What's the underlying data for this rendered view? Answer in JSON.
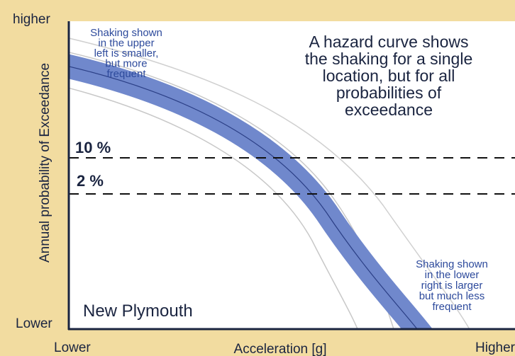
{
  "axes": {
    "y_top": "higher",
    "y_bottom": "Lower",
    "y_title": "Annual probability of Exceedance",
    "x_left": "Lower",
    "x_right": "Higher",
    "x_title": "Acceleration [g]"
  },
  "notes": {
    "upper_left": [
      "Shaking shown",
      "in the upper",
      "left is smaller,",
      "but more",
      "frequent"
    ],
    "main": [
      "A hazard curve shows",
      "the shaking for a single",
      "location, but for all",
      "probabilities of",
      "exceedance"
    ],
    "lower_right": [
      "Shaking shown",
      "in the lower",
      "right is larger",
      "but much less",
      "frequent"
    ]
  },
  "lines": [
    "10 %",
    "2 %"
  ],
  "location": "New Plymouth"
}
